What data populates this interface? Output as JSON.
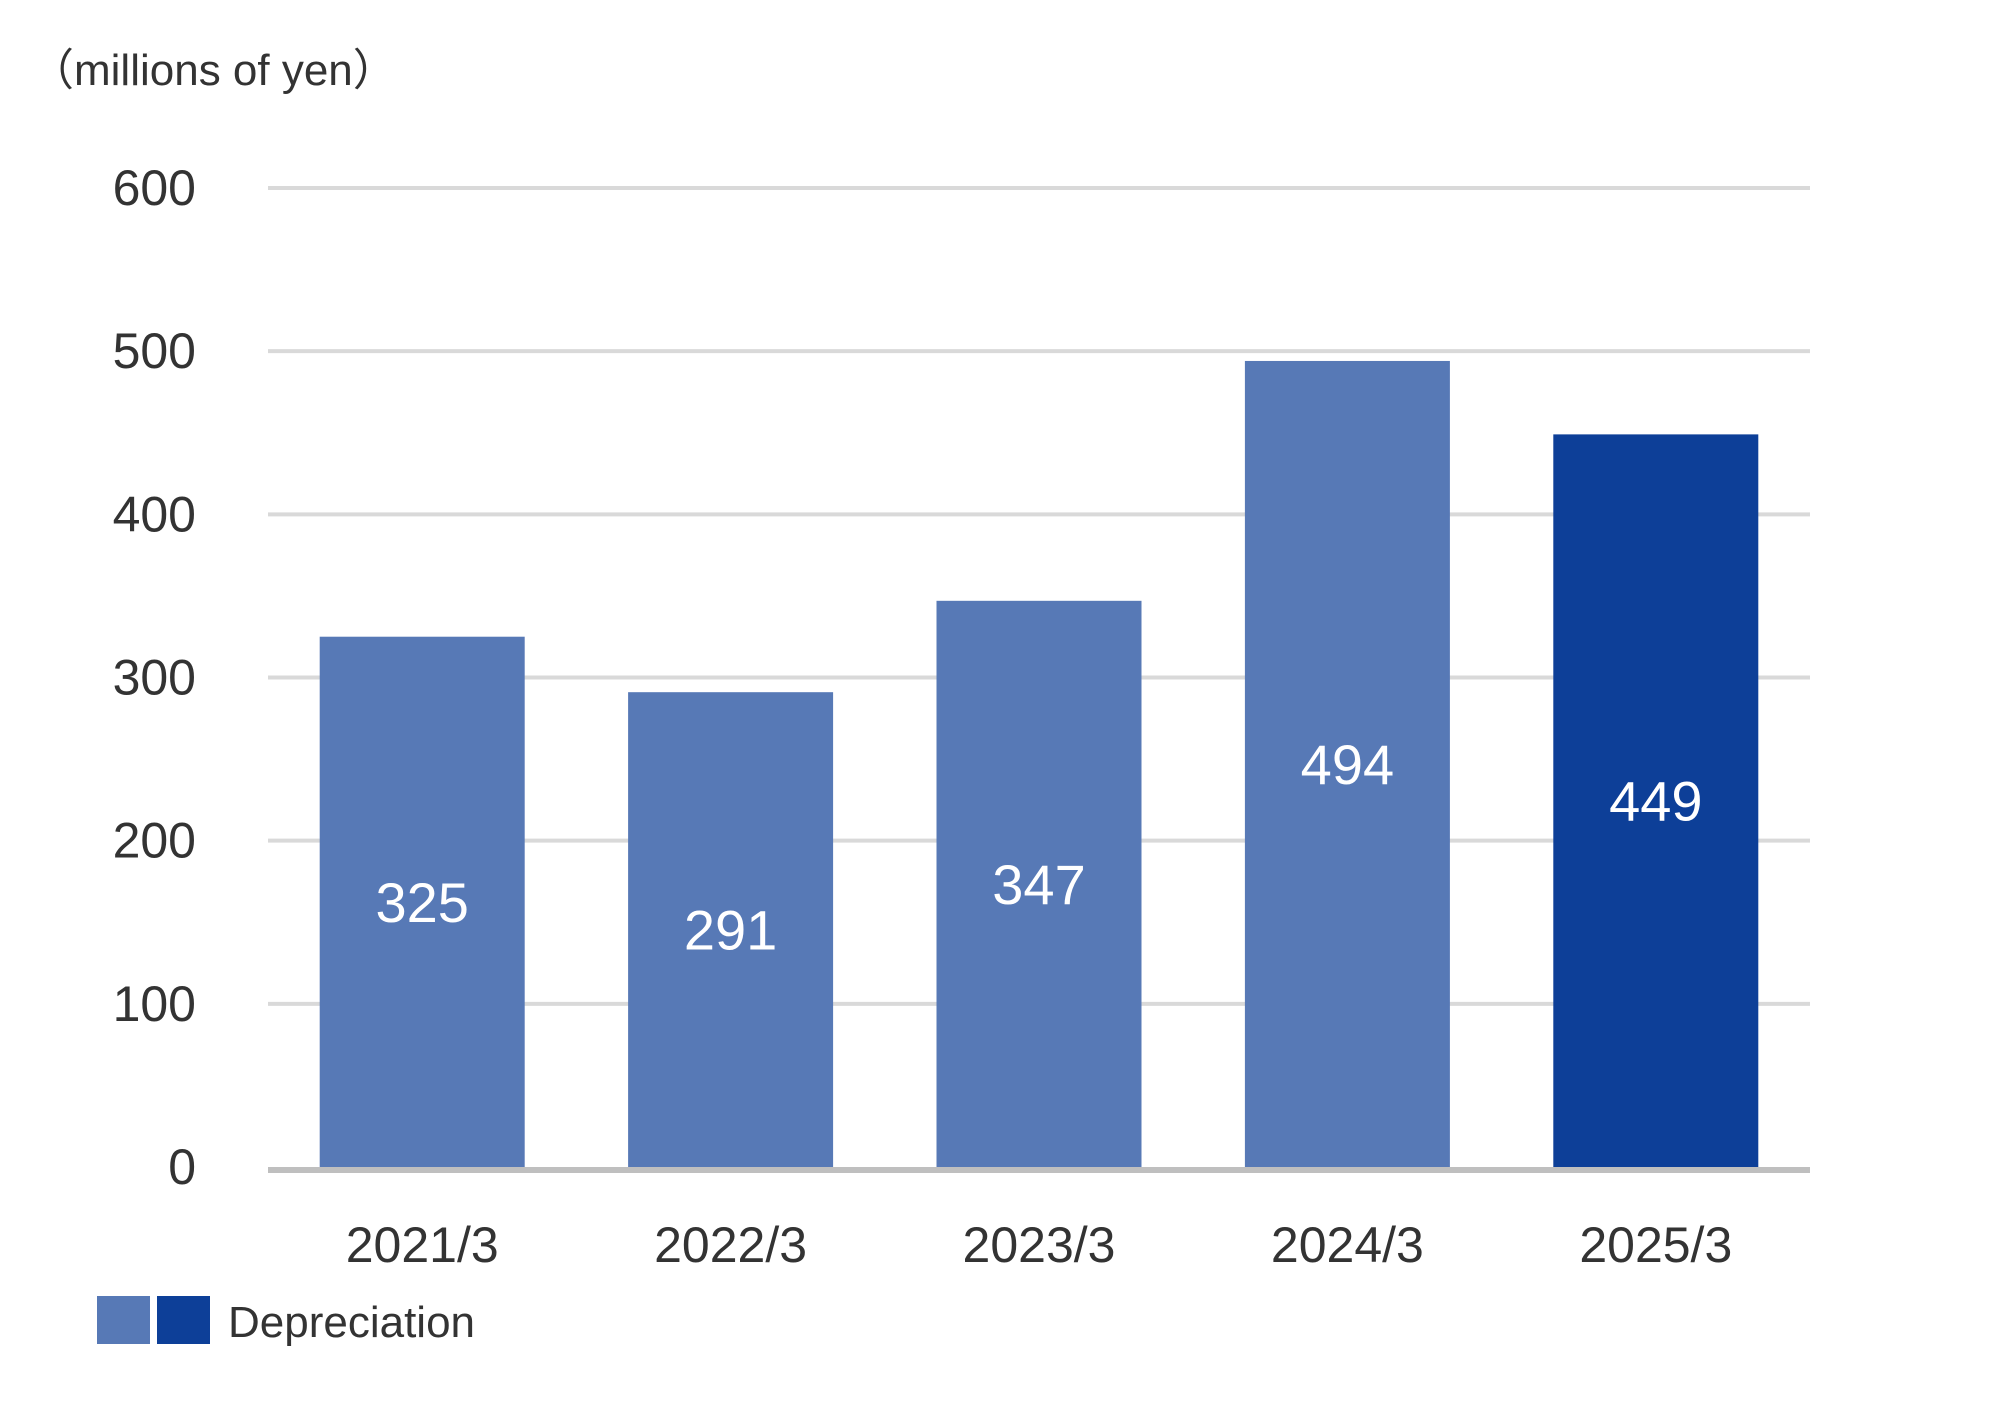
{
  "chart_data": {
    "type": "bar",
    "unit_label": "（millions of yen）",
    "categories": [
      "2021/3",
      "2022/3",
      "2023/3",
      "2024/3",
      "2025/3"
    ],
    "series": [
      {
        "name": "Depreciation",
        "values": [
          325,
          291,
          347,
          494,
          449
        ]
      }
    ],
    "ylim": [
      0,
      600
    ],
    "yticks": [
      "0",
      "100",
      "200",
      "300",
      "400",
      "500",
      "600"
    ],
    "grid": true,
    "legend": {
      "placement": "bottom-left",
      "label": "Depreciation"
    },
    "colors": {
      "bar": "#5779b6",
      "bar_highlight": "#0d3f98",
      "grid": "#d9d9d9",
      "axis": "#bfbfbf"
    },
    "highlight_index": 4
  }
}
